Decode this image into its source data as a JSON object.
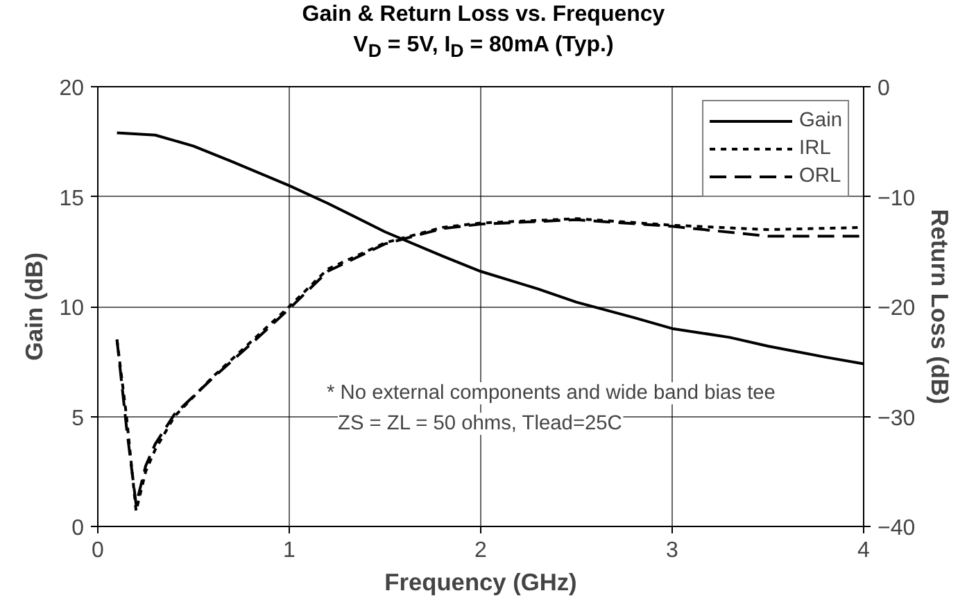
{
  "chart_data": {
    "type": "line",
    "title": "Gain & Return Loss vs. Frequency",
    "subtitle": "V$_{D}$ = 5V, I$_{D}$ = 80mA (Typ.)",
    "xlabel": "Frequency (GHz)",
    "ylabel": "Gain (dB)",
    "y2label": "Return Loss (dB)",
    "xlim": [
      0,
      4
    ],
    "xticks": [
      0,
      1,
      2,
      3,
      4
    ],
    "ylim": [
      0,
      20
    ],
    "yticks": [
      0,
      5,
      10,
      15,
      20
    ],
    "y2lim": [
      -40,
      0
    ],
    "y2ticks": [
      -40,
      -30,
      -20,
      -10,
      0
    ],
    "grid": true,
    "legend": "top right",
    "annotations": [
      "* No external components and wide band bias tee",
      "ZS = ZL = 50 ohms, Tlead=25C"
    ],
    "series": [
      {
        "name": "Gain",
        "color": "#000000",
        "line_style": "solid",
        "x": [
          0.1,
          0.3,
          0.5,
          0.7,
          1.0,
          1.2,
          1.5,
          1.8,
          2.0,
          2.3,
          2.5,
          2.8,
          3.0,
          3.3,
          3.5,
          3.8,
          4.0
        ],
        "values": [
          17.9,
          17.8,
          17.3,
          16.6,
          15.5,
          14.7,
          13.4,
          12.3,
          11.6,
          10.8,
          10.2,
          9.5,
          9.0,
          8.6,
          8.2,
          7.7,
          7.4
        ]
      },
      {
        "name": "IRL",
        "color": "#000000",
        "line_style": "dotted",
        "axis": "y2",
        "x": [
          0.1,
          0.15,
          0.2,
          0.25,
          0.3,
          0.4,
          0.6,
          0.8,
          1.0,
          1.2,
          1.5,
          1.8,
          2.0,
          2.5,
          3.0,
          3.5,
          4.0
        ],
        "values": [
          -23,
          -30,
          -38.6,
          -35,
          -33,
          -30,
          -26.4,
          -23.2,
          -20,
          -16.6,
          -14.2,
          -12.8,
          -12.4,
          -12,
          -12.6,
          -13,
          -12.8
        ]
      },
      {
        "name": "ORL",
        "color": "#000000",
        "line_style": "dashed",
        "axis": "y2",
        "x": [
          0.1,
          0.15,
          0.2,
          0.25,
          0.3,
          0.4,
          0.6,
          0.8,
          1.0,
          1.2,
          1.5,
          1.8,
          2.0,
          2.5,
          3.0,
          3.5,
          4.0
        ],
        "values": [
          -23,
          -31,
          -38,
          -34.5,
          -32.5,
          -29.8,
          -26.5,
          -23.4,
          -20.2,
          -16.8,
          -14.3,
          -12.9,
          -12.5,
          -12.1,
          -12.7,
          -13.6,
          -13.6
        ]
      }
    ]
  }
}
